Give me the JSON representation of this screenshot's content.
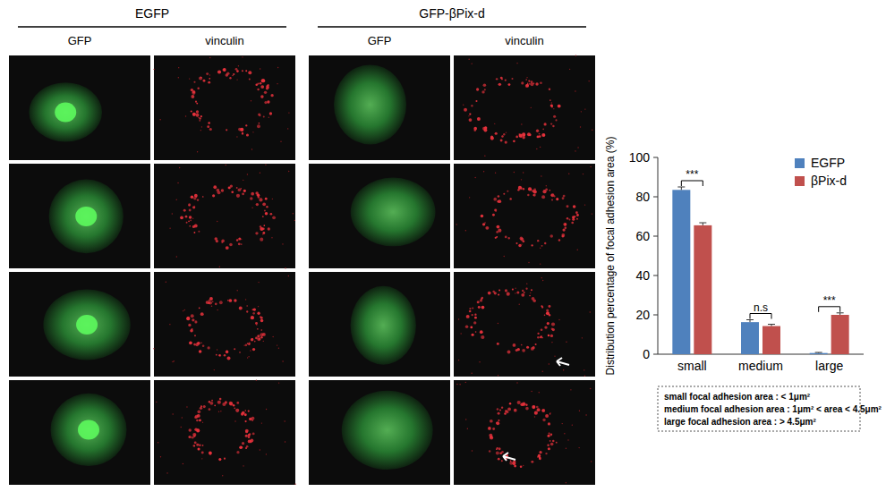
{
  "figure": {
    "groups": [
      {
        "title": "EGFP",
        "columns": [
          "GFP",
          "vinculin"
        ]
      },
      {
        "title": "GFP-βPix-d",
        "columns": [
          "GFP",
          "vinculin"
        ]
      }
    ]
  },
  "chart_data": {
    "type": "bar",
    "y_label": "Distribution percentage of focal adhesion area (%)",
    "categories": [
      "small",
      "medium",
      "large"
    ],
    "series": [
      {
        "name": "EGFP",
        "color": "#4f81bd",
        "values": [
          83.5,
          16.3,
          0.6
        ],
        "errors": [
          1.5,
          1.2,
          0.3
        ]
      },
      {
        "name": "βPix-d",
        "color": "#c0504d",
        "values": [
          65.5,
          14.3,
          20
        ],
        "errors": [
          1.3,
          0.9,
          1.0
        ]
      }
    ],
    "significance": [
      "***",
      "n.s",
      "***"
    ],
    "ylim": [
      0,
      100
    ],
    "yticks": [
      0,
      20,
      40,
      60,
      80,
      100
    ],
    "legend": "upper right",
    "notes": [
      "small focal adhesion area : < 1μm²",
      "medium focal adhesion area : 1μm² < area < 4.5μm²",
      "large focal adhesion area : > 4.5μm²"
    ]
  }
}
